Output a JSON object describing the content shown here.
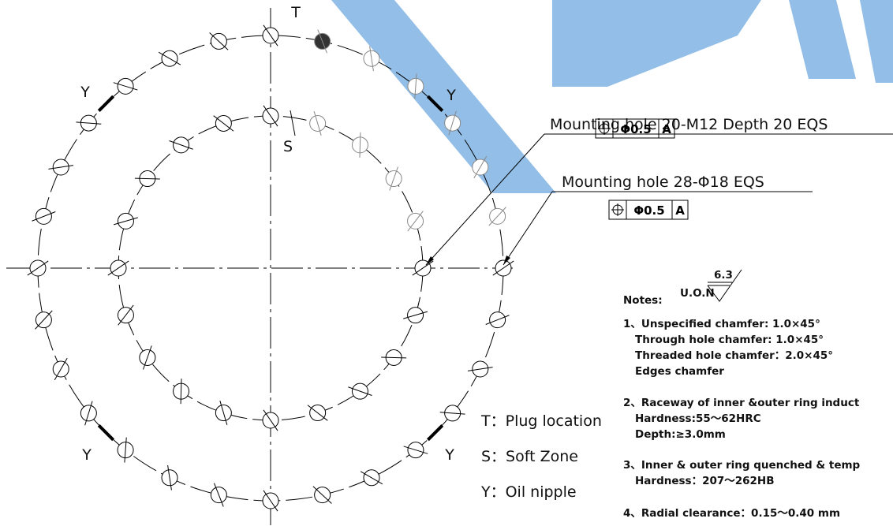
{
  "labels": {
    "T": "T",
    "S": "S",
    "Y": [
      "Y",
      "Y",
      "Y",
      "Y"
    ]
  },
  "callouts": [
    {
      "text": "Mounting hole 20-M12 Depth 20 EQS",
      "tolerance": "Φ0.5",
      "datum": "A"
    },
    {
      "text": "Mounting hole 28-Φ18 EQS",
      "tolerance": "Φ0.5",
      "datum": "A"
    }
  ],
  "notes": {
    "title": "Notes:",
    "uon": "U.O.N",
    "roughness": "6.3",
    "items": [
      [
        "1、Unspecified chamfer: 1.0×45°",
        "Through hole chamfer: 1.0×45°",
        "Threaded hole chamfer：2.0×45°",
        "Edges chamfer"
      ],
      [
        "2、Raceway of inner &outer ring induct",
        "Hardness:55～62HRC",
        "Depth:≥3.0mm"
      ],
      [
        "3、Inner & outer ring quenched & temp",
        "Hardness：207～262HB"
      ],
      [
        "4、Radial clearance：0.15～0.40 mm"
      ]
    ]
  },
  "legend": [
    "T：Plug location",
    "S：Soft Zone",
    "Y：Oil nipple"
  ]
}
